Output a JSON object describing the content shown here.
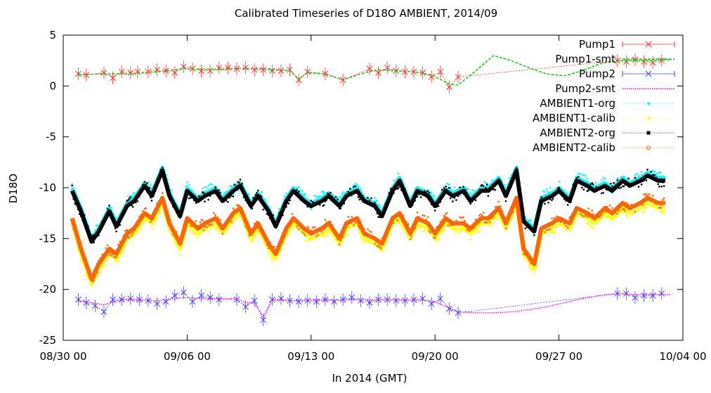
{
  "chart_data": {
    "type": "line",
    "title": "Calibrated Timeseries of D18O AMBIENT, 2014/09",
    "xlabel": "In 2014 (GMT)",
    "ylabel": "D18O",
    "x_range": [
      "2014-08-30",
      "2014-10-04"
    ],
    "ylim": [
      -25,
      5
    ],
    "x_ticks": [
      "08/30 00",
      "09/06 00",
      "09/13 00",
      "09/20 00",
      "09/27 00",
      "10/04 00"
    ],
    "y_ticks": [
      "5",
      "0",
      "-5",
      "-10",
      "-15",
      "-20",
      "-25"
    ],
    "grid": false,
    "legend_position": "top-right",
    "series": [
      {
        "name": "Pump1",
        "color": "#ff3030",
        "marker": "x",
        "x_days": [
          0.85,
          1.3,
          2.3,
          2.8,
          3.3,
          3.8,
          4.2,
          4.8,
          5.3,
          5.8,
          6.3,
          6.8,
          7.3,
          7.8,
          8.3,
          8.8,
          9.3,
          9.8,
          10.3,
          10.8,
          11.3,
          11.8,
          12.3,
          12.8,
          13.3,
          13.8,
          14.8,
          15.8,
          17.3,
          17.8,
          18.3,
          18.8,
          19.3,
          19.8,
          20.3,
          20.8,
          21.3,
          21.8,
          22.3,
          31.3,
          31.8,
          32.3,
          32.8,
          33.3,
          33.8
        ],
        "values": [
          1.2,
          1.1,
          1.3,
          0.8,
          1.4,
          1.3,
          1.4,
          1.4,
          1.6,
          1.5,
          1.3,
          1.9,
          1.7,
          1.5,
          1.5,
          1.8,
          1.8,
          1.7,
          1.8,
          1.6,
          1.6,
          1.5,
          1.5,
          1.6,
          0.6,
          1.4,
          1.2,
          0.6,
          1.7,
          1.3,
          1.8,
          1.5,
          1.4,
          1.4,
          1.3,
          0.9,
          1.4,
          -0.1,
          0.9,
          2.5,
          2.4,
          2.6,
          2.4,
          2.3,
          2.5
        ]
      },
      {
        "name": "Pump1-smt",
        "color": "#00cc00",
        "style": "dashed",
        "x_days": [
          0.85,
          2.3,
          3.8,
          5.3,
          6.8,
          8.3,
          9.8,
          11.3,
          12.8,
          13.3,
          13.8,
          14.8,
          15.8,
          16.8,
          17.8,
          18.8,
          19.8,
          20.8,
          21.8,
          22.3,
          23.3,
          24.3,
          25.3,
          26.3,
          27.3,
          28.3,
          29.3,
          30.3,
          31.3,
          32.3,
          33.3,
          34.3
        ],
        "values": [
          1.1,
          1.2,
          1.2,
          1.4,
          1.7,
          1.6,
          1.7,
          1.7,
          1.5,
          0.7,
          1.3,
          1.2,
          0.6,
          1.2,
          1.6,
          1.5,
          1.4,
          1.1,
          0.2,
          0.1,
          1.5,
          3.0,
          2.5,
          1.8,
          1.2,
          1.0,
          1.5,
          2.2,
          2.5,
          2.5,
          2.5,
          2.6
        ]
      },
      {
        "name": "Pump2",
        "color": "#4040ff",
        "marker": "x",
        "x_days": [
          0.85,
          1.3,
          1.8,
          2.3,
          2.8,
          3.3,
          3.8,
          4.3,
          4.8,
          5.3,
          5.8,
          6.3,
          6.8,
          7.3,
          7.8,
          8.3,
          8.8,
          9.8,
          10.3,
          10.8,
          11.3,
          11.8,
          12.3,
          12.8,
          13.3,
          13.8,
          14.3,
          14.8,
          15.3,
          15.8,
          16.3,
          16.8,
          17.3,
          17.8,
          18.3,
          18.8,
          19.3,
          19.8,
          20.3,
          20.8,
          21.3,
          21.8,
          22.3,
          31.3,
          31.8,
          32.3,
          32.8,
          33.3,
          33.8
        ],
        "values": [
          -21.0,
          -21.3,
          -21.6,
          -22.2,
          -21.0,
          -21.0,
          -20.9,
          -21.0,
          -21.1,
          -21.4,
          -21.2,
          -20.6,
          -20.3,
          -21.2,
          -20.6,
          -20.8,
          -21.0,
          -21.0,
          -21.7,
          -21.1,
          -23.0,
          -21.0,
          -20.9,
          -21.1,
          -21.2,
          -21.1,
          -21.2,
          -21.0,
          -21.2,
          -21.0,
          -20.8,
          -21.1,
          -21.3,
          -21.0,
          -21.0,
          -21.1,
          -21.1,
          -21.0,
          -20.9,
          -21.4,
          -20.9,
          -21.9,
          -22.3,
          -20.4,
          -20.4,
          -20.8,
          -20.6,
          -20.6,
          -20.4
        ]
      },
      {
        "name": "Pump2-smt",
        "color": "#ff00ff",
        "style": "dotted",
        "x_days": [
          0.85,
          2.3,
          3.3,
          5.3,
          6.8,
          8.3,
          9.8,
          10.3,
          10.8,
          11.3,
          11.8,
          12.8,
          14.8,
          16.8,
          18.8,
          20.8,
          21.8,
          22.3,
          23.3,
          24.3,
          25.3,
          26.3,
          27.3,
          28.3,
          29.3,
          30.3,
          31.3,
          32.3,
          33.3,
          34.3
        ],
        "values": [
          -21.1,
          -21.5,
          -21.0,
          -21.1,
          -20.8,
          -20.9,
          -20.9,
          -21.3,
          -21.3,
          -22.7,
          -21.0,
          -21.1,
          -21.0,
          -21.0,
          -21.0,
          -21.1,
          -21.8,
          -22.2,
          -22.3,
          -22.3,
          -22.2,
          -22.0,
          -21.7,
          -21.3,
          -20.9,
          -20.6,
          -20.4,
          -20.5,
          -20.5,
          -20.5
        ]
      },
      {
        "name": "AMBIENT1-org",
        "color": "#00ffff",
        "marker": "dot",
        "x_days": [
          0.5,
          1.0,
          1.6,
          2.0,
          2.6,
          3.0,
          3.6,
          4.0,
          4.6,
          5.0,
          5.6,
          6.0,
          6.6,
          7.0,
          7.6,
          8.0,
          8.6,
          9.0,
          9.6,
          10.0,
          10.6,
          11.0,
          11.6,
          12.0,
          12.6,
          13.0,
          13.6,
          14.0,
          14.6,
          15.0,
          15.6,
          16.0,
          16.6,
          17.0,
          17.6,
          18.0,
          18.6,
          19.0,
          19.6,
          20.0,
          20.6,
          21.0,
          21.6,
          22.0,
          22.6,
          23.0,
          23.6,
          24.0,
          24.6,
          25.0,
          25.6,
          26.0,
          26.6,
          27.0,
          27.6,
          28.0,
          28.6,
          29.0,
          29.6,
          30.0,
          30.6,
          31.0,
          31.6,
          32.0,
          32.6,
          33.0,
          33.6,
          34.0
        ],
        "values": [
          -10.0,
          -12.0,
          -15.0,
          -14.0,
          -12.0,
          -13.5,
          -11.5,
          -11.0,
          -9.5,
          -10.5,
          -8.0,
          -10.5,
          -12.5,
          -10.0,
          -11.0,
          -10.5,
          -10.0,
          -11.0,
          -10.0,
          -9.5,
          -11.5,
          -10.5,
          -12.0,
          -13.5,
          -11.0,
          -10.0,
          -11.0,
          -11.5,
          -11.0,
          -10.5,
          -11.5,
          -10.5,
          -10.0,
          -11.0,
          -11.5,
          -12.5,
          -10.0,
          -9.0,
          -11.5,
          -10.0,
          -10.5,
          -11.5,
          -10.0,
          -10.5,
          -10.0,
          -11.0,
          -10.0,
          -10.0,
          -9.0,
          -10.5,
          -8.0,
          -13.0,
          -14.0,
          -11.0,
          -10.5,
          -10.0,
          -11.0,
          -9.0,
          -9.5,
          -10.0,
          -9.5,
          -10.0,
          -9.0,
          -9.5,
          -9.0,
          -8.5,
          -9.0,
          -9.0
        ]
      },
      {
        "name": "AMBIENT1-calib",
        "color": "#ffff00",
        "marker": "dot",
        "x_days": [
          0.5,
          1.0,
          1.6,
          2.0,
          2.6,
          3.0,
          3.6,
          4.0,
          4.6,
          5.0,
          5.6,
          6.0,
          6.6,
          7.0,
          7.6,
          8.0,
          8.6,
          9.0,
          9.6,
          10.0,
          10.6,
          11.0,
          11.6,
          12.0,
          12.6,
          13.0,
          13.6,
          14.0,
          14.6,
          15.0,
          15.6,
          16.0,
          16.6,
          17.0,
          17.6,
          18.0,
          18.6,
          19.0,
          19.6,
          20.0,
          20.6,
          21.0,
          21.6,
          22.0,
          22.6,
          23.0,
          23.6,
          24.0,
          24.6,
          25.0,
          25.6,
          26.0,
          26.6,
          27.0,
          27.6,
          28.0,
          28.6,
          29.0,
          29.6,
          30.0,
          30.6,
          31.0,
          31.6,
          32.0,
          32.6,
          33.0,
          33.6,
          34.0
        ],
        "values": [
          -13.5,
          -16.5,
          -19.5,
          -18.0,
          -16.5,
          -17.0,
          -15.0,
          -14.5,
          -13.0,
          -13.5,
          -11.5,
          -14.0,
          -16.0,
          -13.5,
          -14.5,
          -14.0,
          -13.5,
          -14.5,
          -13.0,
          -12.5,
          -15.0,
          -14.0,
          -16.0,
          -17.0,
          -14.5,
          -13.5,
          -14.5,
          -15.0,
          -14.5,
          -14.0,
          -15.5,
          -14.0,
          -13.5,
          -15.0,
          -15.5,
          -16.0,
          -13.5,
          -13.0,
          -15.0,
          -13.5,
          -14.0,
          -15.0,
          -13.5,
          -14.0,
          -14.0,
          -14.5,
          -13.5,
          -13.5,
          -12.5,
          -14.0,
          -11.5,
          -16.5,
          -18.0,
          -14.5,
          -14.0,
          -13.5,
          -14.0,
          -12.5,
          -13.0,
          -13.5,
          -12.5,
          -13.0,
          -12.0,
          -12.5,
          -12.0,
          -11.5,
          -12.0,
          -12.0
        ]
      },
      {
        "name": "AMBIENT2-org",
        "color": "#000000",
        "marker": "square",
        "x_days": [
          0.5,
          1.0,
          1.6,
          2.0,
          2.6,
          3.0,
          3.6,
          4.0,
          4.6,
          5.0,
          5.6,
          6.0,
          6.6,
          7.0,
          7.6,
          8.0,
          8.6,
          9.0,
          9.6,
          10.0,
          10.6,
          11.0,
          11.6,
          12.0,
          12.6,
          13.0,
          13.6,
          14.0,
          14.6,
          15.0,
          15.6,
          16.0,
          16.6,
          17.0,
          17.6,
          18.0,
          18.6,
          19.0,
          19.6,
          20.0,
          20.6,
          21.0,
          21.6,
          22.0,
          22.6,
          23.0,
          23.6,
          24.0,
          24.6,
          25.0,
          25.6,
          26.0,
          26.6,
          27.0,
          27.6,
          28.0,
          28.6,
          29.0,
          29.6,
          30.0,
          30.6,
          31.0,
          31.6,
          32.0,
          32.6,
          33.0,
          33.6,
          34.0
        ],
        "values": [
          -10.3,
          -12.3,
          -15.3,
          -14.3,
          -12.3,
          -13.8,
          -11.8,
          -11.3,
          -9.8,
          -10.8,
          -8.3,
          -10.8,
          -12.8,
          -10.3,
          -11.3,
          -10.8,
          -10.3,
          -11.3,
          -10.3,
          -9.8,
          -11.8,
          -10.8,
          -12.3,
          -13.8,
          -11.3,
          -10.3,
          -11.3,
          -11.8,
          -11.3,
          -10.8,
          -11.8,
          -10.8,
          -10.3,
          -11.3,
          -11.8,
          -12.8,
          -10.3,
          -9.3,
          -11.8,
          -10.3,
          -10.8,
          -11.8,
          -10.3,
          -10.8,
          -10.3,
          -11.3,
          -10.3,
          -10.3,
          -9.3,
          -10.8,
          -8.3,
          -13.3,
          -14.3,
          -11.3,
          -10.8,
          -10.3,
          -11.3,
          -9.3,
          -9.8,
          -10.3,
          -9.8,
          -10.3,
          -9.3,
          -9.8,
          -9.3,
          -8.8,
          -9.3,
          -9.3
        ]
      },
      {
        "name": "AMBIENT2-calib",
        "color": "#ff6600",
        "marker": "circle",
        "x_days": [
          0.5,
          1.0,
          1.6,
          2.0,
          2.6,
          3.0,
          3.6,
          4.0,
          4.6,
          5.0,
          5.6,
          6.0,
          6.6,
          7.0,
          7.6,
          8.0,
          8.6,
          9.0,
          9.6,
          10.0,
          10.6,
          11.0,
          11.6,
          12.0,
          12.6,
          13.0,
          13.6,
          14.0,
          14.6,
          15.0,
          15.6,
          16.0,
          16.6,
          17.0,
          17.6,
          18.0,
          18.6,
          19.0,
          19.6,
          20.0,
          20.6,
          21.0,
          21.6,
          22.0,
          22.6,
          23.0,
          23.6,
          24.0,
          24.6,
          25.0,
          25.6,
          26.0,
          26.6,
          27.0,
          27.6,
          28.0,
          28.6,
          29.0,
          29.6,
          30.0,
          30.6,
          31.0,
          31.6,
          32.0,
          32.6,
          33.0,
          33.6,
          34.0
        ],
        "values": [
          -13.0,
          -16.0,
          -19.0,
          -17.5,
          -16.0,
          -16.5,
          -14.5,
          -14.0,
          -12.5,
          -13.0,
          -11.0,
          -13.5,
          -15.5,
          -13.0,
          -14.0,
          -13.5,
          -13.0,
          -14.0,
          -12.5,
          -12.0,
          -14.5,
          -13.5,
          -15.5,
          -16.5,
          -14.0,
          -13.0,
          -14.0,
          -14.5,
          -14.0,
          -13.5,
          -15.0,
          -13.5,
          -13.0,
          -14.5,
          -15.0,
          -15.5,
          -13.0,
          -12.5,
          -14.5,
          -13.0,
          -13.5,
          -14.5,
          -13.0,
          -13.5,
          -13.5,
          -14.0,
          -13.0,
          -13.0,
          -12.0,
          -13.5,
          -11.0,
          -16.0,
          -17.5,
          -14.0,
          -13.5,
          -13.0,
          -13.5,
          -12.0,
          -12.5,
          -13.0,
          -12.0,
          -12.5,
          -11.5,
          -12.0,
          -11.5,
          -11.0,
          -11.5,
          -11.5
        ]
      }
    ]
  }
}
